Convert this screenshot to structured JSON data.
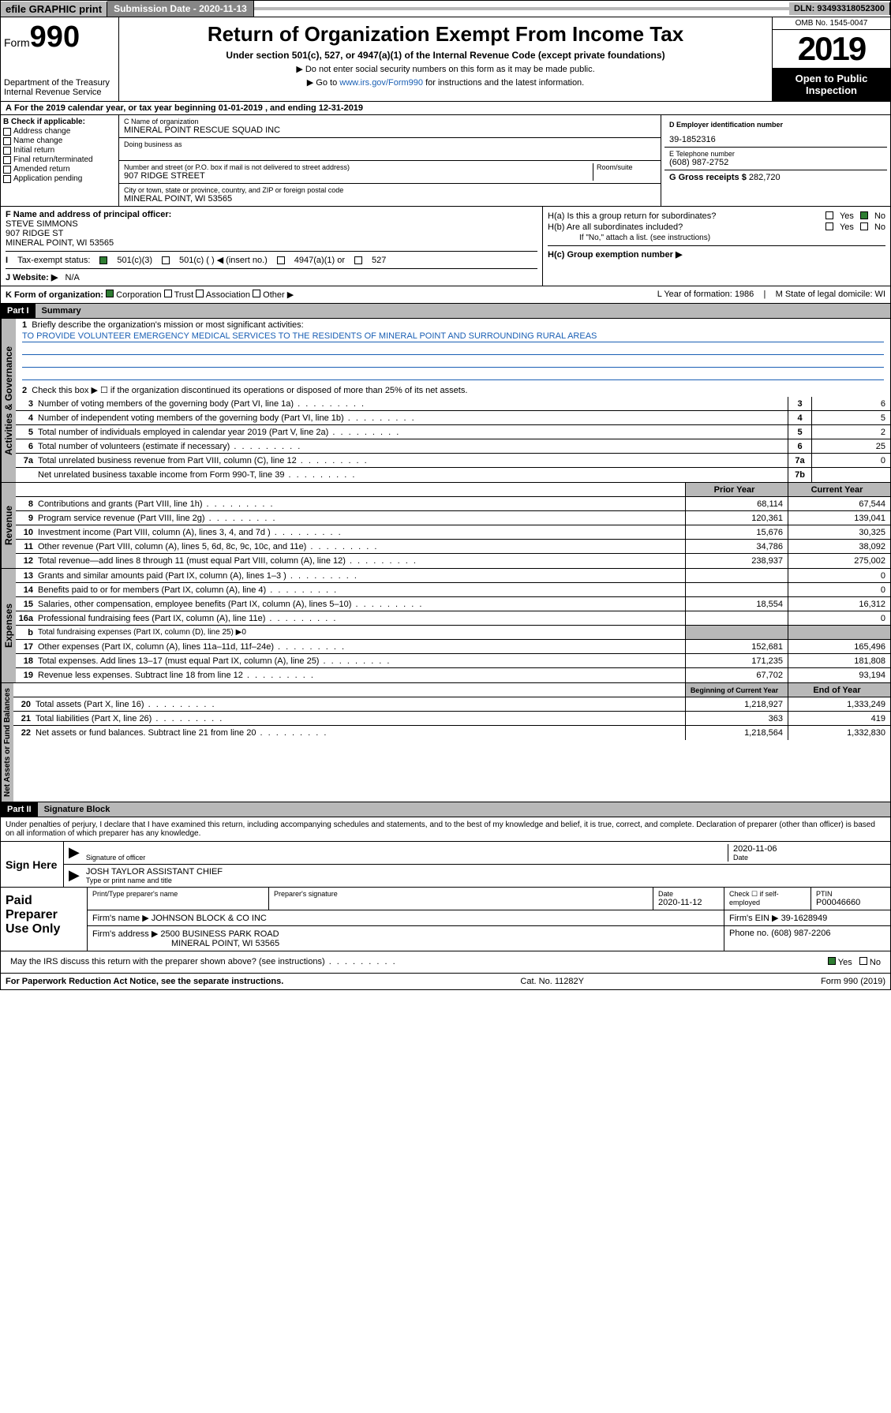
{
  "topbar": {
    "efile": "efile GRAPHIC print",
    "sub_label": "Submission Date - 2020-11-13",
    "dln": "DLN: 93493318052300"
  },
  "header": {
    "form_prefix": "Form",
    "form_num": "990",
    "dept": "Department of the Treasury\nInternal Revenue Service",
    "title": "Return of Organization Exempt From Income Tax",
    "subtitle": "Under section 501(c), 527, or 4947(a)(1) of the Internal Revenue Code (except private foundations)",
    "note1": "▶ Do not enter social security numbers on this form as it may be made public.",
    "note2_pre": "▶ Go to ",
    "note2_link": "www.irs.gov/Form990",
    "note2_post": " for instructions and the latest information.",
    "omb": "OMB No. 1545-0047",
    "year": "2019",
    "open": "Open to Public Inspection"
  },
  "taxyear": {
    "line": "For the 2019 calendar year, or tax year beginning 01-01-2019  , and ending 12-31-2019"
  },
  "B": {
    "header": "B Check if applicable:",
    "items": [
      "Address change",
      "Name change",
      "Initial return",
      "Final return/terminated",
      "Amended return",
      "Application pending"
    ]
  },
  "C": {
    "name_lbl": "C Name of organization",
    "name": "MINERAL POINT RESCUE SQUAD INC",
    "dba_lbl": "Doing business as",
    "addr_lbl": "Number and street (or P.O. box if mail is not delivered to street address)",
    "room_lbl": "Room/suite",
    "addr": "907 RIDGE STREET",
    "city_lbl": "City or town, state or province, country, and ZIP or foreign postal code",
    "city": "MINERAL POINT, WI  53565"
  },
  "D": {
    "lbl": "D Employer identification number",
    "val": "39-1852316"
  },
  "E": {
    "lbl": "E Telephone number",
    "val": "(608) 987-2752"
  },
  "G": {
    "lbl": "G Gross receipts $",
    "val": "282,720"
  },
  "F": {
    "lbl": "F  Name and address of principal officer:",
    "name": "STEVE SIMMONS",
    "addr": "907 RIDGE ST",
    "city": "MINERAL POINT, WI  53565"
  },
  "H": {
    "a": "H(a)  Is this a group return for subordinates?",
    "b": "H(b)  Are all subordinates included?",
    "b_note": "If \"No,\" attach a list. (see instructions)",
    "c": "H(c)  Group exemption number ▶"
  },
  "I": {
    "lbl": "Tax-exempt status:",
    "opts": [
      "501(c)(3)",
      "501(c) (  ) ◀ (insert no.)",
      "4947(a)(1) or",
      "527"
    ]
  },
  "J": {
    "lbl": "J  Website: ▶",
    "val": "N/A"
  },
  "K": {
    "lbl": "K Form of organization:",
    "opts": [
      "Corporation",
      "Trust",
      "Association",
      "Other ▶"
    ],
    "L": "L Year of formation: 1986",
    "M": "M State of legal domicile: WI"
  },
  "part1": {
    "hdr": "Part I",
    "title": "Summary",
    "q1": "Briefly describe the organization's mission or most significant activities:",
    "mission": "TO PROVIDE VOLUNTEER EMERGENCY MEDICAL SERVICES TO THE RESIDENTS OF MINERAL POINT AND SURROUNDING RURAL AREAS",
    "q2": "Check this box ▶ ☐  if the organization discontinued its operations or disposed of more than 25% of its net assets.",
    "lines_gov": [
      {
        "n": "3",
        "d": "Number of voting members of the governing body (Part VI, line 1a)",
        "box": "3",
        "v": "6"
      },
      {
        "n": "4",
        "d": "Number of independent voting members of the governing body (Part VI, line 1b)",
        "box": "4",
        "v": "5"
      },
      {
        "n": "5",
        "d": "Total number of individuals employed in calendar year 2019 (Part V, line 2a)",
        "box": "5",
        "v": "2"
      },
      {
        "n": "6",
        "d": "Total number of volunteers (estimate if necessary)",
        "box": "6",
        "v": "25"
      },
      {
        "n": "7a",
        "d": "Total unrelated business revenue from Part VIII, column (C), line 12",
        "box": "7a",
        "v": "0"
      },
      {
        "n": "",
        "d": "Net unrelated business taxable income from Form 990-T, line 39",
        "box": "7b",
        "v": ""
      }
    ],
    "col_prior": "Prior Year",
    "col_curr": "Current Year",
    "lines_rev": [
      {
        "n": "8",
        "d": "Contributions and grants (Part VIII, line 1h)",
        "p": "68,114",
        "c": "67,544"
      },
      {
        "n": "9",
        "d": "Program service revenue (Part VIII, line 2g)",
        "p": "120,361",
        "c": "139,041"
      },
      {
        "n": "10",
        "d": "Investment income (Part VIII, column (A), lines 3, 4, and 7d )",
        "p": "15,676",
        "c": "30,325"
      },
      {
        "n": "11",
        "d": "Other revenue (Part VIII, column (A), lines 5, 6d, 8c, 9c, 10c, and 11e)",
        "p": "34,786",
        "c": "38,092"
      },
      {
        "n": "12",
        "d": "Total revenue—add lines 8 through 11 (must equal Part VIII, column (A), line 12)",
        "p": "238,937",
        "c": "275,002"
      }
    ],
    "lines_exp": [
      {
        "n": "13",
        "d": "Grants and similar amounts paid (Part IX, column (A), lines 1–3 )",
        "p": "",
        "c": "0"
      },
      {
        "n": "14",
        "d": "Benefits paid to or for members (Part IX, column (A), line 4)",
        "p": "",
        "c": "0"
      },
      {
        "n": "15",
        "d": "Salaries, other compensation, employee benefits (Part IX, column (A), lines 5–10)",
        "p": "18,554",
        "c": "16,312"
      },
      {
        "n": "16a",
        "d": "Professional fundraising fees (Part IX, column (A), line 11e)",
        "p": "",
        "c": "0"
      },
      {
        "n": "b",
        "d": "Total fundraising expenses (Part IX, column (D), line 25) ▶0",
        "p": "—",
        "c": "—"
      },
      {
        "n": "17",
        "d": "Other expenses (Part IX, column (A), lines 11a–11d, 11f–24e)",
        "p": "152,681",
        "c": "165,496"
      },
      {
        "n": "18",
        "d": "Total expenses. Add lines 13–17 (must equal Part IX, column (A), line 25)",
        "p": "171,235",
        "c": "181,808"
      },
      {
        "n": "19",
        "d": "Revenue less expenses. Subtract line 18 from line 12",
        "p": "67,702",
        "c": "93,194"
      }
    ],
    "col_begin": "Beginning of Current Year",
    "col_end": "End of Year",
    "lines_net": [
      {
        "n": "20",
        "d": "Total assets (Part X, line 16)",
        "p": "1,218,927",
        "c": "1,333,249"
      },
      {
        "n": "21",
        "d": "Total liabilities (Part X, line 26)",
        "p": "363",
        "c": "419"
      },
      {
        "n": "22",
        "d": "Net assets or fund balances. Subtract line 21 from line 20",
        "p": "1,218,564",
        "c": "1,332,830"
      }
    ],
    "vtabs": {
      "gov": "Activities & Governance",
      "rev": "Revenue",
      "exp": "Expenses",
      "net": "Net Assets or Fund Balances"
    }
  },
  "part2": {
    "hdr": "Part II",
    "title": "Signature Block",
    "intro": "Under penalties of perjury, I declare that I have examined this return, including accompanying schedules and statements, and to the best of my knowledge and belief, it is true, correct, and complete. Declaration of preparer (other than officer) is based on all information of which preparer has any knowledge.",
    "sign_here": "Sign Here",
    "sig_officer_lbl": "Signature of officer",
    "sig_date": "2020-11-06",
    "date_lbl": "Date",
    "officer_name": "JOSH TAYLOR  ASSISTANT CHIEF",
    "officer_lbl": "Type or print name and title",
    "paid": "Paid Preparer Use Only",
    "p_name_lbl": "Print/Type preparer's name",
    "p_sig_lbl": "Preparer's signature",
    "p_date_lbl": "Date",
    "p_date": "2020-11-12",
    "p_check": "Check ☐ if self-employed",
    "ptin_lbl": "PTIN",
    "ptin": "P00046660",
    "firm_name_lbl": "Firm's name    ▶",
    "firm_name": "JOHNSON BLOCK & CO INC",
    "firm_ein_lbl": "Firm's EIN ▶",
    "firm_ein": "39-1628949",
    "firm_addr_lbl": "Firm's address ▶",
    "firm_addr": "2500 BUSINESS PARK ROAD",
    "firm_city": "MINERAL POINT, WI  53565",
    "firm_phone_lbl": "Phone no.",
    "firm_phone": "(608) 987-2206",
    "discuss": "May the IRS discuss this return with the preparer shown above? (see instructions)"
  },
  "footer": {
    "pra": "For Paperwork Reduction Act Notice, see the separate instructions.",
    "cat": "Cat. No. 11282Y",
    "form": "Form 990 (2019)"
  }
}
